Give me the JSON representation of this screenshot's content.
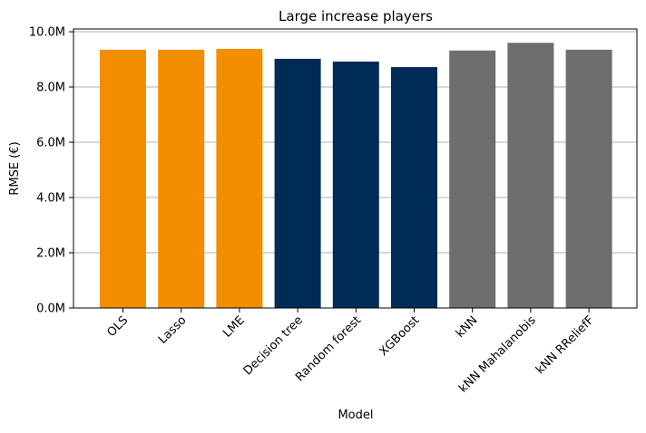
{
  "chart_data": {
    "type": "bar",
    "title": "Large increase players",
    "xlabel": "Model",
    "ylabel": "RMSE (€)",
    "ylim": [
      0,
      10100000
    ],
    "y_ticks": [
      0,
      2000000,
      4000000,
      6000000,
      8000000,
      10000000
    ],
    "y_tick_labels": [
      "0.0M",
      "2.0M",
      "4.0M",
      "6.0M",
      "8.0M",
      "10.0M"
    ],
    "grid": "horizontal",
    "categories": [
      "OLS",
      "Lasso",
      "LME",
      "Decision tree",
      "Random forest",
      "XGBoost",
      "kNN",
      "kNN Mahalanobis",
      "kNN RReliefF"
    ],
    "values": [
      9350000,
      9350000,
      9380000,
      9020000,
      8920000,
      8720000,
      9320000,
      9600000,
      9350000
    ],
    "bar_colors": [
      "#f28e00",
      "#f28e00",
      "#f28e00",
      "#002b57",
      "#002b57",
      "#002b57",
      "#6e6e6e",
      "#6e6e6e",
      "#6e6e6e"
    ],
    "grid_color": "#b0b0b0"
  }
}
